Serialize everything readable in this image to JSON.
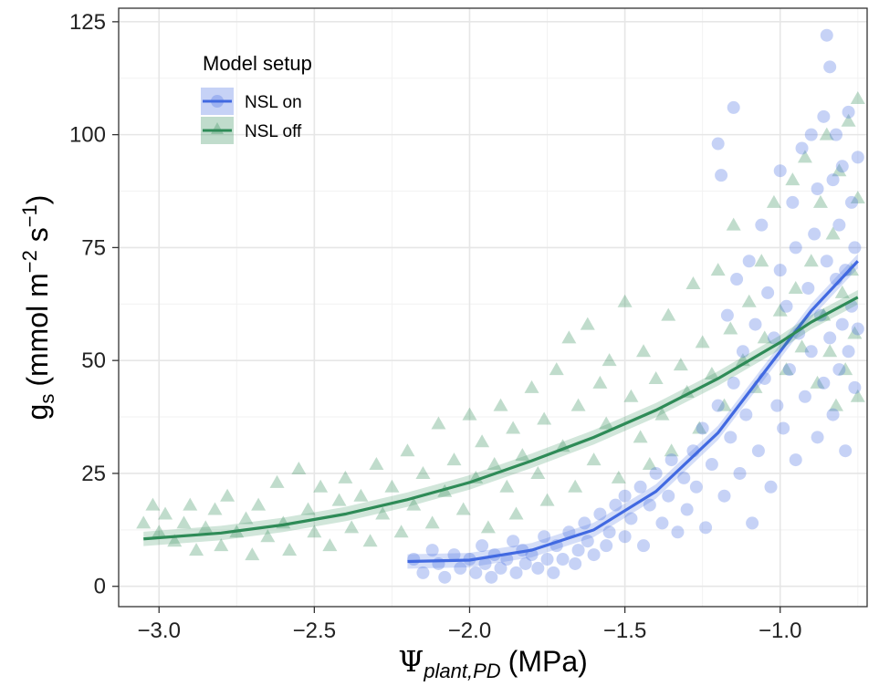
{
  "chart_data": {
    "type": "scatter",
    "xlabel": {
      "symbol": "Ψ",
      "subscript": "plant,PD",
      "unit": "(MPa)"
    },
    "ylabel": {
      "base": "g",
      "subscript": "s",
      "unit": "(mmol m",
      "exp1": "−2",
      "mid": " s",
      "exp2": "−1",
      "close": ")"
    },
    "xlim": [
      -3.13,
      -0.72
    ],
    "ylim": [
      -4.5,
      128
    ],
    "x_ticks": [
      -3.0,
      -2.5,
      -2.0,
      -1.5,
      -1.0
    ],
    "x_tick_labels": [
      "−3.0",
      "−2.5",
      "−2.0",
      "−1.5",
      "−1.0"
    ],
    "y_ticks": [
      0,
      25,
      50,
      75,
      100,
      125
    ],
    "y_tick_labels": [
      "0",
      "25",
      "50",
      "75",
      "100",
      "125"
    ],
    "grid": true,
    "legend": {
      "title": "Model setup",
      "position": "top-left",
      "entries": [
        {
          "label": "NSL on",
          "marker": "circle",
          "color": "#4169e1"
        },
        {
          "label": "NSL off",
          "marker": "triangle",
          "color": "#2e8b57"
        }
      ]
    },
    "series": [
      {
        "name": "NSL on",
        "color": "#4169e1",
        "marker": "circle",
        "fit": [
          [
            -2.2,
            5.5
          ],
          [
            -2.0,
            5.8
          ],
          [
            -1.8,
            8.0
          ],
          [
            -1.6,
            12.5
          ],
          [
            -1.4,
            21.0
          ],
          [
            -1.2,
            34.0
          ],
          [
            -1.0,
            52.0
          ],
          [
            -0.9,
            61.0
          ],
          [
            -0.75,
            72.0
          ]
        ],
        "points": [
          [
            -2.18,
            6
          ],
          [
            -2.15,
            3
          ],
          [
            -2.12,
            8
          ],
          [
            -2.1,
            5
          ],
          [
            -2.08,
            2
          ],
          [
            -2.05,
            7
          ],
          [
            -2.03,
            4
          ],
          [
            -2.0,
            6
          ],
          [
            -1.98,
            3
          ],
          [
            -1.96,
            9
          ],
          [
            -1.95,
            5
          ],
          [
            -1.93,
            2
          ],
          [
            -1.92,
            7
          ],
          [
            -1.9,
            4
          ],
          [
            -1.88,
            6
          ],
          [
            -1.86,
            10
          ],
          [
            -1.85,
            3
          ],
          [
            -1.83,
            8
          ],
          [
            -1.82,
            5
          ],
          [
            -1.8,
            7
          ],
          [
            -1.78,
            4
          ],
          [
            -1.76,
            11
          ],
          [
            -1.75,
            6
          ],
          [
            -1.73,
            3
          ],
          [
            -1.72,
            9
          ],
          [
            -1.7,
            6
          ],
          [
            -1.68,
            12
          ],
          [
            -1.66,
            5
          ],
          [
            -1.65,
            8
          ],
          [
            -1.63,
            14
          ],
          [
            -1.62,
            10
          ],
          [
            -1.6,
            7
          ],
          [
            -1.58,
            16
          ],
          [
            -1.56,
            9
          ],
          [
            -1.55,
            12
          ],
          [
            -1.53,
            18
          ],
          [
            -1.5,
            11
          ],
          [
            -1.5,
            20
          ],
          [
            -1.48,
            15
          ],
          [
            -1.45,
            22
          ],
          [
            -1.44,
            9
          ],
          [
            -1.42,
            18
          ],
          [
            -1.4,
            25
          ],
          [
            -1.38,
            14
          ],
          [
            -1.36,
            20
          ],
          [
            -1.35,
            28
          ],
          [
            -1.33,
            12
          ],
          [
            -1.31,
            24
          ],
          [
            -1.3,
            17
          ],
          [
            -1.28,
            30
          ],
          [
            -1.27,
            22
          ],
          [
            -1.25,
            35
          ],
          [
            -1.24,
            13
          ],
          [
            -1.22,
            27
          ],
          [
            -1.2,
            40
          ],
          [
            -1.2,
            98
          ],
          [
            -1.19,
            91
          ],
          [
            -1.18,
            20
          ],
          [
            -1.17,
            60
          ],
          [
            -1.16,
            33
          ],
          [
            -1.15,
            106
          ],
          [
            -1.15,
            45
          ],
          [
            -1.14,
            68
          ],
          [
            -1.13,
            25
          ],
          [
            -1.12,
            52
          ],
          [
            -1.11,
            38
          ],
          [
            -1.1,
            72
          ],
          [
            -1.09,
            14
          ],
          [
            -1.08,
            58
          ],
          [
            -1.07,
            30
          ],
          [
            -1.06,
            80
          ],
          [
            -1.05,
            46
          ],
          [
            -1.04,
            65
          ],
          [
            -1.03,
            22
          ],
          [
            -1.02,
            55
          ],
          [
            -1.01,
            40
          ],
          [
            -1.0,
            92
          ],
          [
            -1.0,
            70
          ],
          [
            -0.99,
            35
          ],
          [
            -0.98,
            62
          ],
          [
            -0.97,
            48
          ],
          [
            -0.96,
            85
          ],
          [
            -0.95,
            28
          ],
          [
            -0.95,
            75
          ],
          [
            -0.94,
            56
          ],
          [
            -0.93,
            97
          ],
          [
            -0.92,
            42
          ],
          [
            -0.91,
            66
          ],
          [
            -0.9,
            100
          ],
          [
            -0.9,
            52
          ],
          [
            -0.89,
            78
          ],
          [
            -0.88,
            33
          ],
          [
            -0.88,
            88
          ],
          [
            -0.87,
            60
          ],
          [
            -0.86,
            104
          ],
          [
            -0.86,
            45
          ],
          [
            -0.85,
            122
          ],
          [
            -0.85,
            72
          ],
          [
            -0.84,
            115
          ],
          [
            -0.84,
            55
          ],
          [
            -0.83,
            90
          ],
          [
            -0.83,
            38
          ],
          [
            -0.82,
            68
          ],
          [
            -0.82,
            100
          ],
          [
            -0.81,
            48
          ],
          [
            -0.81,
            80
          ],
          [
            -0.8,
            58
          ],
          [
            -0.8,
            93
          ],
          [
            -0.79,
            30
          ],
          [
            -0.79,
            70
          ],
          [
            -0.78,
            105
          ],
          [
            -0.78,
            52
          ],
          [
            -0.77,
            85
          ],
          [
            -0.77,
            62
          ],
          [
            -0.76,
            75
          ],
          [
            -0.76,
            44
          ],
          [
            -0.75,
            95
          ],
          [
            -0.75,
            57
          ]
        ]
      },
      {
        "name": "NSL off",
        "color": "#2e8b57",
        "marker": "triangle",
        "fit": [
          [
            -3.05,
            10.5
          ],
          [
            -2.8,
            11.8
          ],
          [
            -2.6,
            13.6
          ],
          [
            -2.4,
            16.0
          ],
          [
            -2.2,
            19.2
          ],
          [
            -2.0,
            23.0
          ],
          [
            -1.8,
            27.8
          ],
          [
            -1.6,
            33.0
          ],
          [
            -1.4,
            39.0
          ],
          [
            -1.2,
            46.0
          ],
          [
            -1.0,
            54.0
          ],
          [
            -0.9,
            58.5
          ],
          [
            -0.75,
            64.0
          ]
        ],
        "points": [
          [
            -3.05,
            14
          ],
          [
            -3.02,
            18
          ],
          [
            -3.0,
            12
          ],
          [
            -2.98,
            16
          ],
          [
            -2.95,
            10
          ],
          [
            -2.92,
            14
          ],
          [
            -2.9,
            18
          ],
          [
            -2.88,
            8
          ],
          [
            -2.85,
            13
          ],
          [
            -2.82,
            17
          ],
          [
            -2.8,
            9
          ],
          [
            -2.78,
            20
          ],
          [
            -2.75,
            12
          ],
          [
            -2.72,
            15
          ],
          [
            -2.7,
            7
          ],
          [
            -2.68,
            18
          ],
          [
            -2.65,
            11
          ],
          [
            -2.62,
            23
          ],
          [
            -2.6,
            14
          ],
          [
            -2.58,
            8
          ],
          [
            -2.55,
            26
          ],
          [
            -2.52,
            17
          ],
          [
            -2.5,
            12
          ],
          [
            -2.48,
            22
          ],
          [
            -2.45,
            9
          ],
          [
            -2.42,
            19
          ],
          [
            -2.4,
            24
          ],
          [
            -2.38,
            13
          ],
          [
            -2.35,
            20
          ],
          [
            -2.32,
            10
          ],
          [
            -2.3,
            27
          ],
          [
            -2.28,
            16
          ],
          [
            -2.25,
            22
          ],
          [
            -2.22,
            12
          ],
          [
            -2.2,
            30
          ],
          [
            -2.18,
            18
          ],
          [
            -2.15,
            25
          ],
          [
            -2.12,
            14
          ],
          [
            -2.1,
            36
          ],
          [
            -2.08,
            21
          ],
          [
            -2.05,
            28
          ],
          [
            -2.02,
            17
          ],
          [
            -2.0,
            38
          ],
          [
            -1.98,
            24
          ],
          [
            -1.96,
            32
          ],
          [
            -1.94,
            13
          ],
          [
            -1.92,
            27
          ],
          [
            -1.9,
            40
          ],
          [
            -1.88,
            22
          ],
          [
            -1.86,
            35
          ],
          [
            -1.85,
            16
          ],
          [
            -1.83,
            29
          ],
          [
            -1.8,
            44
          ],
          [
            -1.78,
            25
          ],
          [
            -1.76,
            37
          ],
          [
            -1.75,
            19
          ],
          [
            -1.72,
            48
          ],
          [
            -1.7,
            31
          ],
          [
            -1.68,
            55
          ],
          [
            -1.66,
            22
          ],
          [
            -1.65,
            40
          ],
          [
            -1.62,
            58
          ],
          [
            -1.6,
            28
          ],
          [
            -1.58,
            45
          ],
          [
            -1.56,
            36
          ],
          [
            -1.55,
            50
          ],
          [
            -1.52,
            24
          ],
          [
            -1.5,
            63
          ],
          [
            -1.48,
            42
          ],
          [
            -1.45,
            33
          ],
          [
            -1.44,
            52
          ],
          [
            -1.42,
            27
          ],
          [
            -1.4,
            46
          ],
          [
            -1.38,
            38
          ],
          [
            -1.36,
            60
          ],
          [
            -1.35,
            30
          ],
          [
            -1.32,
            49
          ],
          [
            -1.3,
            43
          ],
          [
            -1.28,
            67
          ],
          [
            -1.26,
            35
          ],
          [
            -1.25,
            54
          ],
          [
            -1.22,
            47
          ],
          [
            -1.2,
            70
          ],
          [
            -1.18,
            40
          ],
          [
            -1.16,
            57
          ],
          [
            -1.15,
            80
          ],
          [
            -1.12,
            50
          ],
          [
            -1.1,
            63
          ],
          [
            -1.08,
            44
          ],
          [
            -1.06,
            72
          ],
          [
            -1.05,
            55
          ],
          [
            -1.02,
            85
          ],
          [
            -1.0,
            61
          ],
          [
            -0.98,
            48
          ],
          [
            -0.96,
            90
          ],
          [
            -0.95,
            66
          ],
          [
            -0.93,
            53
          ],
          [
            -0.92,
            95
          ],
          [
            -0.9,
            72
          ],
          [
            -0.88,
            45
          ],
          [
            -0.87,
            85
          ],
          [
            -0.86,
            60
          ],
          [
            -0.85,
            100
          ],
          [
            -0.84,
            52
          ],
          [
            -0.83,
            78
          ],
          [
            -0.82,
            40
          ],
          [
            -0.81,
            92
          ],
          [
            -0.8,
            65
          ],
          [
            -0.79,
            48
          ],
          [
            -0.78,
            103
          ],
          [
            -0.77,
            70
          ],
          [
            -0.76,
            56
          ],
          [
            -0.75,
            108
          ],
          [
            -0.75,
            86
          ],
          [
            -0.75,
            42
          ]
        ]
      }
    ]
  }
}
